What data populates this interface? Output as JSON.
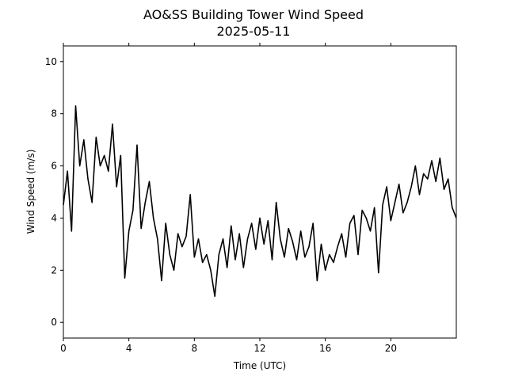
{
  "chart_data": {
    "type": "line",
    "title": "AO&SS Building Tower Wind Speed",
    "subtitle": "2025-05-11",
    "xlabel": "Time (UTC)",
    "ylabel": "Wind Speed (m/s)",
    "xlim": [
      0,
      24
    ],
    "ylim": [
      -0.6,
      10.6
    ],
    "xticks": [
      0,
      4,
      8,
      12,
      16,
      20
    ],
    "yticks": [
      0,
      2,
      4,
      6,
      8,
      10
    ],
    "grid": false,
    "line_color": "#000000",
    "series": [
      {
        "x": [
          0.0,
          0.25,
          0.5,
          0.75,
          1.0,
          1.25,
          1.5,
          1.75,
          2.0,
          2.25,
          2.5,
          2.75,
          3.0,
          3.25,
          3.5,
          3.75,
          4.0,
          4.25,
          4.5,
          4.75,
          5.0,
          5.25,
          5.5,
          5.75,
          6.0,
          6.25,
          6.5,
          6.75,
          7.0,
          7.25,
          7.5,
          7.75,
          8.0,
          8.25,
          8.5,
          8.75,
          9.0,
          9.25,
          9.5,
          9.75,
          10.0,
          10.25,
          10.5,
          10.75,
          11.0,
          11.25,
          11.5,
          11.75,
          12.0,
          12.25,
          12.5,
          12.75,
          13.0,
          13.25,
          13.5,
          13.75,
          14.0,
          14.25,
          14.5,
          14.75,
          15.0,
          15.25,
          15.5,
          15.75,
          16.0,
          16.25,
          16.5,
          16.75,
          17.0,
          17.25,
          17.5,
          17.75,
          18.0,
          18.25,
          18.5,
          18.75,
          19.0,
          19.25,
          19.5,
          19.75,
          20.0,
          20.25,
          20.5,
          20.75,
          21.0,
          21.25,
          21.5,
          21.75,
          22.0,
          22.25,
          22.5,
          22.75,
          23.0,
          23.25,
          23.5,
          23.75,
          24.0
        ],
        "values": [
          4.5,
          5.8,
          3.5,
          8.3,
          6.0,
          7.0,
          5.5,
          4.6,
          7.1,
          6.0,
          6.4,
          5.8,
          7.6,
          5.2,
          6.4,
          1.7,
          3.5,
          4.3,
          6.8,
          3.6,
          4.6,
          5.4,
          4.0,
          3.2,
          1.6,
          3.8,
          2.6,
          2.0,
          3.4,
          2.9,
          3.3,
          4.9,
          2.5,
          3.2,
          2.3,
          2.6,
          2.0,
          1.0,
          2.6,
          3.2,
          2.1,
          3.7,
          2.4,
          3.4,
          2.1,
          3.2,
          3.8,
          2.8,
          4.0,
          3.0,
          3.9,
          2.4,
          4.6,
          3.2,
          2.5,
          3.6,
          3.1,
          2.4,
          3.5,
          2.5,
          2.9,
          3.8,
          1.6,
          3.0,
          2.0,
          2.6,
          2.3,
          2.9,
          3.4,
          2.5,
          3.8,
          4.1,
          2.6,
          4.3,
          4.0,
          3.5,
          4.4,
          1.9,
          4.5,
          5.2,
          3.9,
          4.6,
          5.3,
          4.2,
          4.6,
          5.2,
          6.0,
          4.9,
          5.7,
          5.5,
          6.2,
          5.4,
          6.3,
          5.1,
          5.5,
          4.4,
          4.0
        ]
      }
    ]
  }
}
